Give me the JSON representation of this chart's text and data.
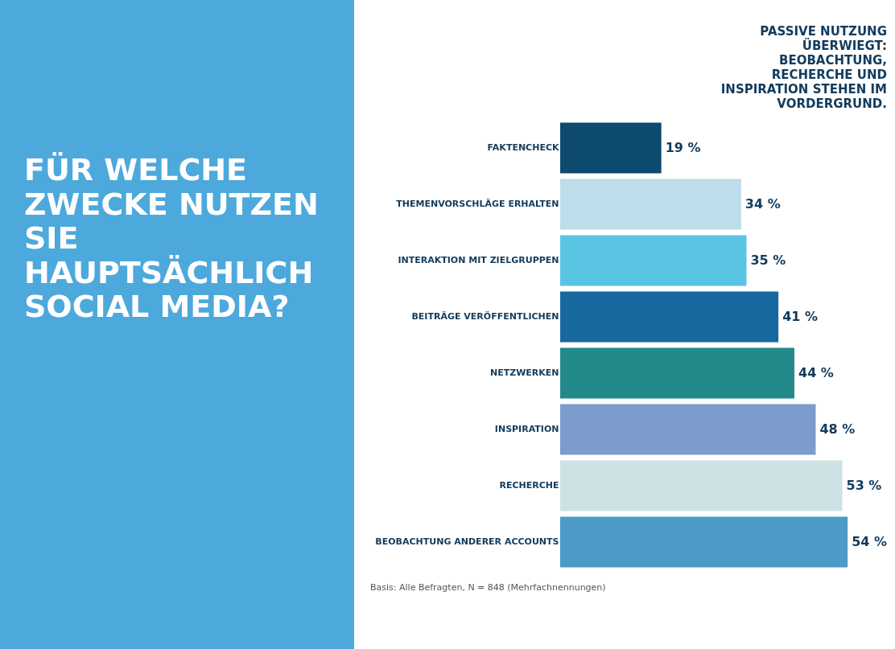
{
  "chart_data": {
    "type": "bar",
    "orientation": "horizontal",
    "title": "FÜR WELCHE ZWECKE NUTZEN SIE HAUPTSÄCHLICH SOCIAL MEDIA?",
    "categories": [
      "FAKTENCHECK",
      "THEMENVORSCHLÄGE ERHALTEN",
      "INTERAKTION MIT ZIELGRUPPEN",
      "BEITRÄGE VERÖFFENTLICHEN",
      "NETZWERKEN",
      "INSPIRATION",
      "RECHERCHE",
      "BEOBACHTUNG ANDERER ACCOUNTS"
    ],
    "values": [
      19,
      34,
      35,
      41,
      44,
      48,
      53,
      54
    ],
    "value_labels": [
      "19 %",
      "34 %",
      "35 %",
      "41 %",
      "44 %",
      "48 %",
      "53 %",
      "54 %"
    ],
    "colors": [
      "#0d4a6e",
      "#bcdde9",
      "#5ac5e3",
      "#1868a0",
      "#238a8c",
      "#7b9ccc",
      "#cde2e4",
      "#4b9ac8"
    ],
    "annotations": [
      "PASSIVE NUTZUNG ÜBERWIEGT: BEOBACHTUNG, RECHERCHE UND INSPIRATION STEHEN IM VORDERGRUND.",
      "Basis: Alle Befragten, N = 848 (Mehrfachnennungen)"
    ]
  }
}
